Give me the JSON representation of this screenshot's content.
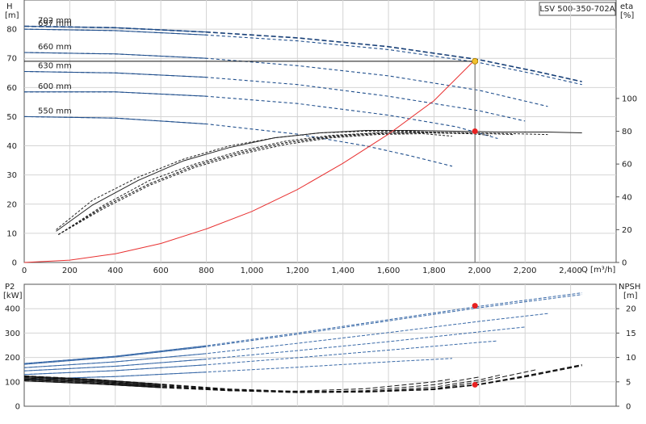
{
  "title": "LSV 500-350-702A",
  "colors": {
    "head": "#1f4e8c",
    "head_active": "#173f77",
    "efficiency": "#222222",
    "system": "#e83030",
    "power": "#3a6aa8",
    "npsh": "#111111",
    "operating_point": "#e82020",
    "duty_point": "#f2c12e",
    "grid": "#d4d4d4"
  },
  "chart_data": [
    {
      "type": "line",
      "panel": "head-efficiency",
      "xlabel": "Q [m³/h]",
      "ylabel_left": "H\n[m]",
      "ylabel_right": "eta\n[%]",
      "xlim": [
        0,
        2600
      ],
      "ylim_left": [
        0,
        90
      ],
      "ylim_right": [
        0,
        160
      ],
      "x_ticks": [
        0,
        200,
        400,
        600,
        800,
        1000,
        1200,
        1400,
        1600,
        1800,
        2000,
        2200,
        2400
      ],
      "x_tick_labels": [
        "0",
        "200",
        "400",
        "600",
        "800",
        "1,000",
        "1,200",
        "1,400",
        "1,600",
        "1,800",
        "2,000",
        "2,200",
        "2,400"
      ],
      "y_ticks_left": [
        0,
        10,
        20,
        30,
        40,
        50,
        60,
        70,
        80
      ],
      "y_ticks_right": [
        0,
        20,
        40,
        60,
        80,
        100
      ],
      "grid": true,
      "head_curves": [
        {
          "label": "702 mm",
          "style": "solid-dashed",
          "x": [
            0,
            400,
            800,
            1200,
            1600,
            2000,
            2250,
            2450
          ],
          "y": [
            81,
            80.5,
            79,
            77,
            74,
            69.5,
            65.5,
            62
          ]
        },
        {
          "label": "697 mm",
          "style": "dashed",
          "x": [
            0,
            400,
            800,
            1200,
            1600,
            2000,
            2250,
            2450
          ],
          "y": [
            80,
            79.5,
            78,
            76,
            73,
            68.5,
            64.5,
            61
          ]
        },
        {
          "label": "660 mm",
          "style": "dashed",
          "x": [
            0,
            400,
            800,
            1200,
            1600,
            2000,
            2300
          ],
          "y": [
            72,
            71.5,
            70,
            67.5,
            64,
            59,
            53.5
          ]
        },
        {
          "label": "630 mm",
          "style": "dashed",
          "x": [
            0,
            400,
            800,
            1200,
            1600,
            2000,
            2200
          ],
          "y": [
            65.5,
            65,
            63.5,
            61,
            57,
            52,
            48.5
          ]
        },
        {
          "label": "600 mm",
          "style": "dashed",
          "x": [
            0,
            400,
            800,
            1200,
            1600,
            1900,
            2080
          ],
          "y": [
            58.5,
            58.5,
            57,
            54.5,
            50.5,
            46.5,
            42.5
          ]
        },
        {
          "label": "550 mm",
          "style": "dashed",
          "x": [
            0,
            400,
            800,
            1200,
            1500,
            1700,
            1880
          ],
          "y": [
            50,
            49.5,
            47.5,
            44,
            40,
            36.5,
            33
          ]
        }
      ],
      "efficiency_curves": [
        {
          "x": [
            140,
            300,
            500,
            700,
            900,
            1100,
            1300,
            1500,
            1700,
            1900,
            2100,
            2300,
            2450
          ],
          "y": [
            19,
            35,
            50,
            62,
            70,
            76,
            79,
            80.5,
            80.5,
            80,
            79.5,
            79.5,
            79
          ]
        },
        {
          "x": [
            150,
            350,
            550,
            750,
            950,
            1150,
            1350,
            1550,
            1750,
            1950,
            2150,
            2300
          ],
          "y": [
            17,
            35,
            50,
            60,
            68,
            74,
            77.5,
            79,
            79.5,
            79,
            78.5,
            78
          ]
        },
        {
          "x": [
            150,
            350,
            550,
            750,
            950,
            1150,
            1350,
            1550,
            1750,
            1950,
            2150
          ],
          "y": [
            17,
            34,
            48,
            59,
            67,
            73,
            77,
            79,
            79.5,
            79,
            78
          ]
        },
        {
          "x": [
            150,
            350,
            550,
            750,
            950,
            1150,
            1350,
            1550,
            1750,
            1950,
            2050
          ],
          "y": [
            17,
            34,
            48,
            59,
            67,
            73,
            76.5,
            78.5,
            79,
            78.5,
            77.5
          ]
        },
        {
          "x": [
            150,
            350,
            550,
            750,
            950,
            1150,
            1350,
            1550,
            1750,
            1880
          ],
          "y": [
            17,
            33,
            47,
            58,
            66,
            72,
            76,
            78,
            78.5,
            77
          ]
        },
        {
          "x": [
            140,
            300,
            500,
            700,
            900,
            1100,
            1300,
            1500,
            1700,
            1850
          ],
          "y": [
            20,
            38,
            52,
            63,
            71,
            76,
            79,
            80,
            80,
            79
          ]
        }
      ],
      "system_curve": {
        "x": [
          0,
          200,
          400,
          600,
          800,
          1000,
          1200,
          1400,
          1600,
          1800,
          1980
        ],
        "y": [
          0,
          0.8,
          3,
          6.5,
          11.5,
          17.5,
          25,
          34,
          44,
          55.5,
          69.5
        ]
      },
      "duty_point": {
        "x": 1980,
        "y": 69
      },
      "efficiency_point": {
        "x": 1980,
        "y": 80
      },
      "duty_head": 69
    },
    {
      "type": "line",
      "panel": "power-npsh",
      "ylabel_left": "P2\n[kW]",
      "ylabel_right": "NPSH\n[m]",
      "xlim": [
        0,
        2600
      ],
      "ylim_left": [
        0,
        500
      ],
      "ylim_right": [
        0,
        25
      ],
      "y_ticks_left": [
        0,
        100,
        200,
        300,
        400
      ],
      "y_ticks_right": [
        0,
        5,
        10,
        15,
        20
      ],
      "grid": true,
      "power_curves": [
        {
          "x": [
            0,
            400,
            800,
            1200,
            1600,
            2000,
            2450
          ],
          "y": [
            175,
            205,
            248,
            300,
            355,
            410,
            465
          ]
        },
        {
          "x": [
            0,
            400,
            800,
            1200,
            1600,
            2000,
            2450
          ],
          "y": [
            172,
            202,
            244,
            295,
            350,
            404,
            458
          ]
        },
        {
          "x": [
            0,
            400,
            800,
            1200,
            1600,
            2000,
            2300
          ],
          "y": [
            158,
            182,
            216,
            258,
            302,
            348,
            380
          ]
        },
        {
          "x": [
            0,
            400,
            800,
            1200,
            1600,
            2000,
            2200
          ],
          "y": [
            145,
            164,
            193,
            228,
            265,
            305,
            325
          ]
        },
        {
          "x": [
            0,
            400,
            800,
            1200,
            1600,
            2000,
            2080
          ],
          "y": [
            130,
            146,
            170,
            199,
            230,
            262,
            268
          ]
        },
        {
          "x": [
            0,
            400,
            800,
            1200,
            1600,
            1880
          ],
          "y": [
            110,
            122,
            140,
            160,
            182,
            196
          ]
        }
      ],
      "npsh_curves": [
        {
          "x": [
            0,
            300,
            600,
            900,
            1200,
            1500,
            1800,
            2000,
            2200,
            2450
          ],
          "y": [
            6.2,
            5.5,
            4.5,
            3.5,
            3.0,
            3.0,
            3.5,
            4.5,
            6.2,
            8.5
          ]
        },
        {
          "x": [
            0,
            300,
            600,
            900,
            1200,
            1500,
            1800,
            2000,
            2200,
            2450
          ],
          "y": [
            6.0,
            5.4,
            4.4,
            3.4,
            2.9,
            2.9,
            3.4,
            4.4,
            6.0,
            8.3
          ]
        },
        {
          "x": [
            0,
            300,
            600,
            900,
            1200,
            1500,
            1800,
            2000,
            2250
          ],
          "y": [
            5.8,
            5.2,
            4.2,
            3.3,
            2.8,
            2.9,
            3.6,
            5.0,
            7.5
          ]
        },
        {
          "x": [
            0,
            300,
            600,
            900,
            1200,
            1500,
            1800,
            2000,
            2100
          ],
          "y": [
            5.6,
            5.0,
            4.1,
            3.2,
            2.8,
            3.0,
            3.9,
            5.4,
            6.5
          ]
        },
        {
          "x": [
            0,
            300,
            600,
            900,
            1200,
            1500,
            1800,
            2000
          ],
          "y": [
            5.4,
            4.8,
            3.9,
            3.2,
            2.9,
            3.2,
            4.4,
            6.0
          ]
        },
        {
          "x": [
            0,
            300,
            600,
            900,
            1200,
            1500,
            1800,
            1880
          ],
          "y": [
            5.2,
            4.6,
            3.8,
            3.2,
            3.1,
            3.6,
            5.0,
            5.6
          ]
        }
      ],
      "power_point": {
        "x": 1980,
        "y": 412
      },
      "npsh_point": {
        "x": 1980,
        "y": 4.4
      }
    }
  ]
}
